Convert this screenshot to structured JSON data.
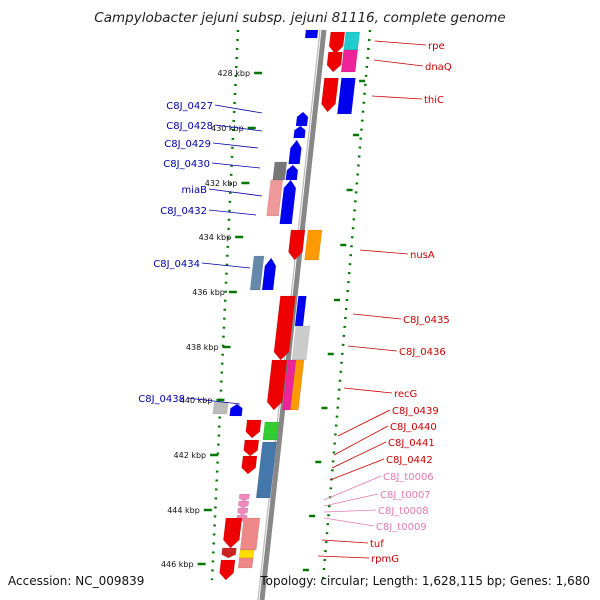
{
  "title": "Campylobacter jejuni subsp. jejuni 81116, complete genome",
  "footer": {
    "accession": "Accession: NC_009839",
    "summary": "Topology: circular; Length: 1,628,115 bp; Genes: 1,680"
  },
  "ticks": [
    "428 kbp",
    "430 kbp",
    "432 kbp",
    "434 kbp",
    "436 kbp",
    "438 kbp",
    "440 kbp",
    "442 kbp",
    "444 kbp",
    "446 kbp"
  ],
  "left_genes": [
    "C8J_0427",
    "C8J_0428",
    "C8J_0429",
    "C8J_0430",
    "miaB",
    "C8J_0432",
    "C8J_0434",
    "C8J_0438"
  ],
  "right_genes": [
    "rpe",
    "dnaQ",
    "thiC",
    "nusA",
    "C8J_0435",
    "C8J_0436",
    "recG",
    "C8J_0439",
    "C8J_0440",
    "C8J_0441",
    "C8J_0442",
    "C8J_t0006",
    "C8J_t0007",
    "C8J_t0008",
    "C8J_t0009",
    "tuf",
    "rpmG"
  ],
  "colors": {
    "forward_gene": "#0000ee",
    "reverse_gene": "#ee0000",
    "trna": "#ee88bb",
    "tick": "#007700",
    "backbone": "#888888"
  }
}
